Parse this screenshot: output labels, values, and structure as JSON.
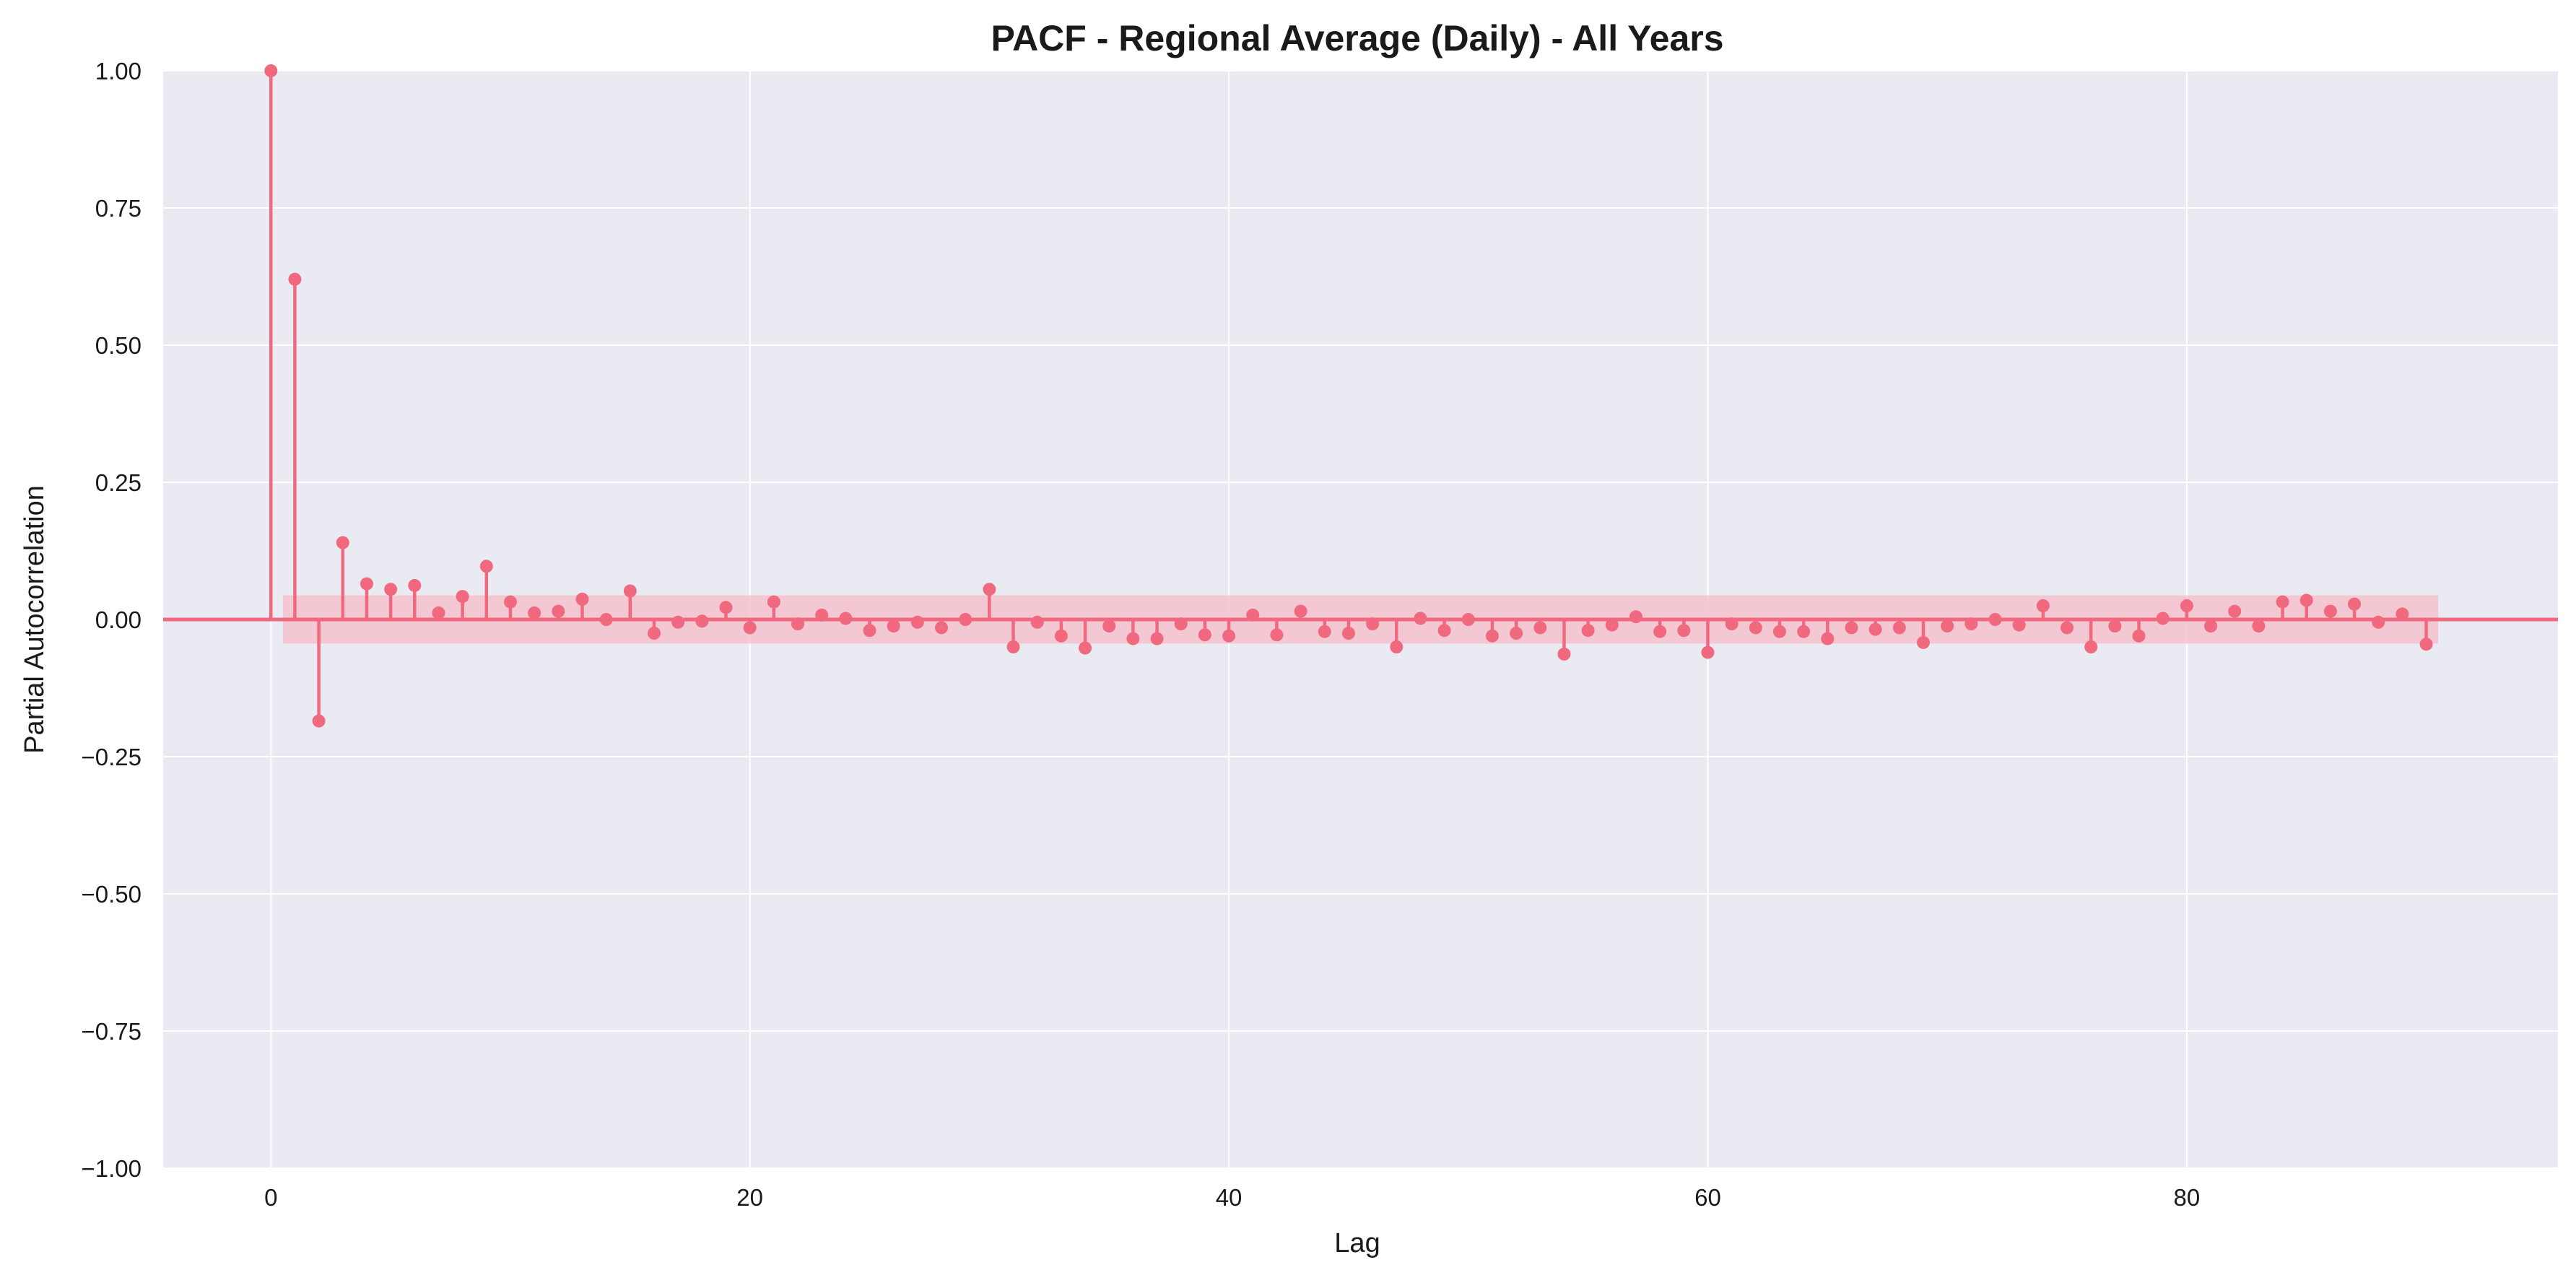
{
  "chart_data": {
    "type": "stem",
    "title": "PACF - Regional Average (Daily) - All Years",
    "xlabel": "Lag",
    "ylabel": "Partial Autocorrelation",
    "xlim": [
      -4.5,
      95.5
    ],
    "ylim": [
      -1.0,
      1.0
    ],
    "x_ticks": [
      0,
      20,
      40,
      60,
      80
    ],
    "x_tick_labels": [
      "0",
      "20",
      "40",
      "60",
      "80"
    ],
    "y_ticks": [
      1.0,
      0.75,
      0.5,
      0.25,
      0.0,
      -0.25,
      -0.5,
      -0.75,
      -1.0
    ],
    "y_tick_labels": [
      "1.00",
      "0.75",
      "0.50",
      "0.25",
      "0.00",
      "−0.25",
      "−0.50",
      "−0.75",
      "−1.00"
    ],
    "grid": true,
    "colors": {
      "stem": "#f0697f",
      "confidence_band": "#f4c2cd",
      "plot_background": "#eaeaf2",
      "grid": "#ffffff"
    },
    "confidence_interval": {
      "lag_start": 0.5,
      "lag_end": 90.5,
      "lower": -0.044,
      "upper": 0.044
    },
    "lags": [
      0,
      1,
      2,
      3,
      4,
      5,
      6,
      7,
      8,
      9,
      10,
      11,
      12,
      13,
      14,
      15,
      16,
      17,
      18,
      19,
      20,
      21,
      22,
      23,
      24,
      25,
      26,
      27,
      28,
      29,
      30,
      31,
      32,
      33,
      34,
      35,
      36,
      37,
      38,
      39,
      40,
      41,
      42,
      43,
      44,
      45,
      46,
      47,
      48,
      49,
      50,
      51,
      52,
      53,
      54,
      55,
      56,
      57,
      58,
      59,
      60,
      61,
      62,
      63,
      64,
      65,
      66,
      67,
      68,
      69,
      70,
      71,
      72,
      73,
      74,
      75,
      76,
      77,
      78,
      79,
      80,
      81,
      82,
      83,
      84,
      85,
      86,
      87,
      88,
      89,
      90
    ],
    "values": [
      1.0,
      0.62,
      -0.185,
      0.14,
      0.065,
      0.055,
      0.062,
      0.012,
      0.042,
      0.097,
      0.032,
      0.012,
      0.015,
      0.037,
      0.0,
      0.052,
      -0.025,
      -0.005,
      -0.003,
      0.022,
      -0.015,
      0.032,
      -0.008,
      0.008,
      0.002,
      -0.02,
      -0.012,
      -0.005,
      -0.015,
      0.0,
      0.055,
      -0.05,
      -0.005,
      -0.03,
      -0.052,
      -0.012,
      -0.035,
      -0.035,
      -0.008,
      -0.028,
      -0.03,
      0.008,
      -0.028,
      0.015,
      -0.022,
      -0.025,
      -0.008,
      -0.05,
      0.002,
      -0.02,
      0.0,
      -0.03,
      -0.025,
      -0.015,
      -0.063,
      -0.02,
      -0.01,
      0.005,
      -0.022,
      -0.02,
      -0.06,
      -0.008,
      -0.015,
      -0.022,
      -0.022,
      -0.035,
      -0.015,
      -0.018,
      -0.015,
      -0.042,
      -0.012,
      -0.008,
      0.0,
      -0.01,
      0.025,
      -0.015,
      -0.05,
      -0.012,
      -0.03,
      0.002,
      0.025,
      -0.012,
      0.015,
      -0.012,
      0.032,
      0.035,
      0.015,
      0.028,
      -0.005,
      0.01,
      -0.045
    ]
  }
}
